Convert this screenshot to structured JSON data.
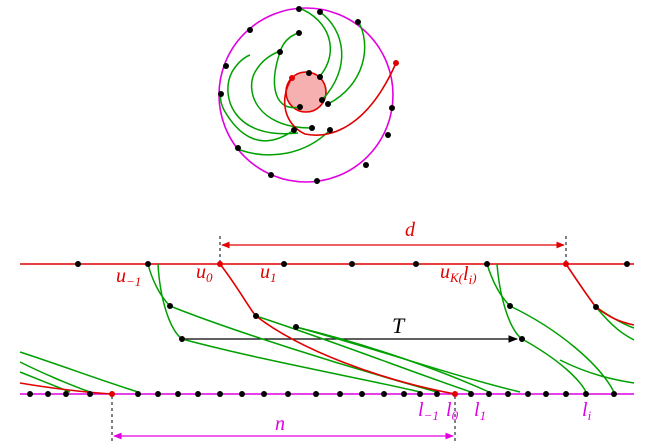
{
  "labels": {
    "d": "d",
    "u_minus1": {
      "main": "u",
      "sub": "−1"
    },
    "u0": {
      "main": "u",
      "sub": "0"
    },
    "u1": {
      "main": "u",
      "sub": "1"
    },
    "uK": {
      "main": "u",
      "sub": "K(",
      "sub_var": "l",
      "sub_var_sub": "i",
      "sub_close": ")"
    },
    "T": "T",
    "l_minus1": {
      "main": "l",
      "sub": "−1"
    },
    "l0": {
      "main": "l",
      "sub": "0"
    },
    "l1": {
      "main": "l",
      "sub": "1"
    },
    "li": {
      "main": "l",
      "sub": "i"
    },
    "n": "n"
  },
  "colors": {
    "red": "#e00000",
    "green": "#00a000",
    "magenta": "#e000e0",
    "black": "#000000",
    "pink_fill": "#f7b0b0"
  }
}
